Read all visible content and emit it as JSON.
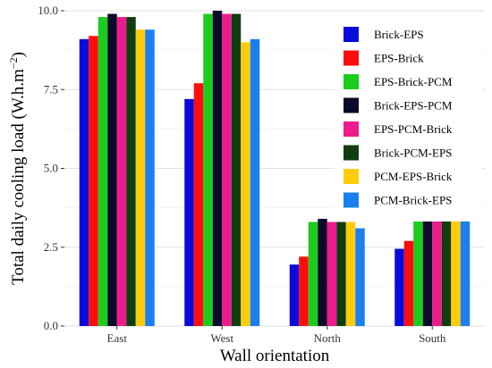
{
  "chart_data": {
    "type": "bar",
    "xlabel": "Wall orientation",
    "ylabel": "Total daily cooling load (W.h.m",
    "ylabel_exponent": "−2",
    "ylabel_close": ")",
    "ylim": [
      0,
      10
    ],
    "yticks": [
      0.0,
      2.5,
      5.0,
      7.5,
      10.0
    ],
    "ytick_labels": [
      "0.0",
      "2.5",
      "5.0",
      "7.5",
      "10.0"
    ],
    "grid": true,
    "legend_position": "top-right",
    "categories": [
      "East",
      "West",
      "North",
      "South"
    ],
    "series": [
      {
        "name": "Brick-EPS",
        "color": "#0a0adc",
        "values": [
          9.1,
          7.2,
          1.95,
          2.45
        ]
      },
      {
        "name": "EPS-Brick",
        "color": "#ff0d0d",
        "values": [
          9.2,
          7.7,
          2.2,
          2.7
        ]
      },
      {
        "name": "EPS-Brick-PCM",
        "color": "#1ccc1c",
        "values": [
          9.8,
          9.9,
          3.3,
          3.9
        ]
      },
      {
        "name": "Brick-EPS-PCM",
        "color": "#0a0a2a",
        "values": [
          9.9,
          10.0,
          3.4,
          4.0
        ]
      },
      {
        "name": "EPS-PCM-Brick",
        "color": "#ee1a8c",
        "values": [
          9.8,
          9.9,
          3.3,
          3.9
        ]
      },
      {
        "name": "Brick-PCM-EPS",
        "color": "#0f3d0f",
        "values": [
          9.8,
          9.9,
          3.3,
          3.9
        ]
      },
      {
        "name": "PCM-EPS-Brick",
        "color": "#ffcc0a",
        "values": [
          9.4,
          9.0,
          3.3,
          3.9
        ]
      },
      {
        "name": "PCM-Brick-EPS",
        "color": "#1a80f0",
        "values": [
          9.4,
          9.1,
          3.1,
          3.7
        ]
      }
    ]
  }
}
